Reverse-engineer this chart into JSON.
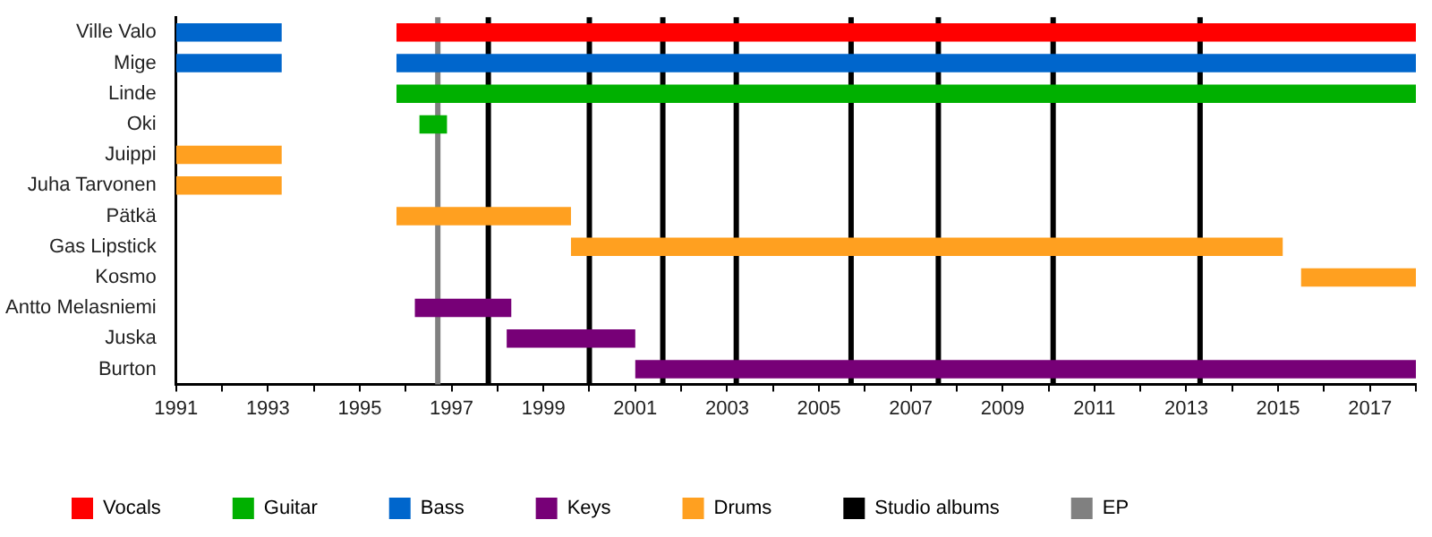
{
  "chart_data": {
    "type": "bar",
    "orientation": "horizontal",
    "categories": [
      "Ville Valo",
      "Mige",
      "Linde",
      "Oki",
      "Juippi",
      "Juha Tarvonen",
      "Pätkä",
      "Gas Lipstick",
      "Kosmo",
      "Antto Melasniemi",
      "Juska",
      "Burton"
    ],
    "series": [
      {
        "name": "Vocals",
        "color": "#ff0000",
        "base": [
          1995.8,
          null,
          null,
          null,
          null,
          null,
          null,
          null,
          null,
          null,
          null,
          null
        ],
        "values": [
          22.2,
          null,
          null,
          null,
          null,
          null,
          null,
          null,
          null,
          null,
          null,
          null
        ]
      },
      {
        "name": "Guitar",
        "color": "#00b000",
        "base": [
          null,
          null,
          1995.8,
          1996.3,
          null,
          null,
          null,
          null,
          null,
          null,
          null,
          null
        ],
        "values": [
          null,
          null,
          22.2,
          0.6,
          null,
          null,
          null,
          null,
          null,
          null,
          null,
          null
        ]
      },
      {
        "name": "Bass",
        "color": "#0066cc",
        "base": [
          1991,
          1991,
          null,
          null,
          null,
          null,
          null,
          null,
          null,
          null,
          null,
          null
        ],
        "values": [
          2.3,
          2.3,
          null,
          null,
          null,
          null,
          null,
          null,
          null,
          null,
          null,
          null
        ]
      },
      {
        "color": "#0066cc",
        "base": [
          null,
          1995.8,
          null,
          null,
          null,
          null,
          null,
          null,
          null,
          null,
          null,
          null
        ],
        "values": [
          null,
          22.2,
          null,
          null,
          null,
          null,
          null,
          null,
          null,
          null,
          null,
          null
        ]
      },
      {
        "name": "Keys",
        "color": "#770077",
        "base": [
          null,
          null,
          null,
          null,
          null,
          null,
          null,
          null,
          null,
          1996.2,
          1998.2,
          2001
        ],
        "values": [
          null,
          null,
          null,
          null,
          null,
          null,
          null,
          null,
          null,
          2.1,
          2.8,
          17
        ]
      },
      {
        "name": "Drums",
        "color": "#ffa020",
        "base": [
          null,
          null,
          null,
          null,
          1991,
          1991,
          1995.8,
          1999.6,
          2015.5,
          null,
          null,
          null
        ],
        "values": [
          null,
          null,
          null,
          null,
          2.3,
          2.3,
          3.8,
          15.5,
          2.5,
          null,
          null,
          null
        ]
      }
    ],
    "ref_lines": [
      {
        "axis": "x",
        "value": 1997.8,
        "color": "#000000",
        "label": "Studio albums"
      },
      {
        "axis": "x",
        "value": 2000,
        "color": "#000000"
      },
      {
        "axis": "x",
        "value": 2001.6,
        "color": "#000000"
      },
      {
        "axis": "x",
        "value": 2003.2,
        "color": "#000000"
      },
      {
        "axis": "x",
        "value": 2005.7,
        "color": "#000000"
      },
      {
        "axis": "x",
        "value": 2007.6,
        "color": "#000000"
      },
      {
        "axis": "x",
        "value": 2010.1,
        "color": "#000000"
      },
      {
        "axis": "x",
        "value": 2013.3,
        "color": "#000000"
      },
      {
        "axis": "x",
        "value": 1996.7,
        "color": "#808080",
        "label": "EP"
      }
    ],
    "xlim": [
      1991,
      2018
    ],
    "xticks": [
      1991,
      {
        "value": 1992,
        "label": null
      },
      1993,
      {
        "value": 1994,
        "label": null
      },
      1995,
      {
        "value": 1996,
        "label": null
      },
      1997,
      {
        "value": 1998,
        "label": null
      },
      1999,
      {
        "value": 2000,
        "label": null
      },
      2001,
      {
        "value": 2002,
        "label": null
      },
      2003,
      {
        "value": 2004,
        "label": null
      },
      2005,
      {
        "value": 2006,
        "label": null
      },
      2007,
      {
        "value": 2008,
        "label": null
      },
      2009,
      {
        "value": 2010,
        "label": null
      },
      2011,
      {
        "value": 2012,
        "label": null
      },
      2013,
      {
        "value": 2014,
        "label": null
      },
      2015,
      {
        "value": 2016,
        "label": null
      },
      2017,
      {
        "value": 2018,
        "label": null
      }
    ],
    "grid": false,
    "legend": "bottom"
  }
}
